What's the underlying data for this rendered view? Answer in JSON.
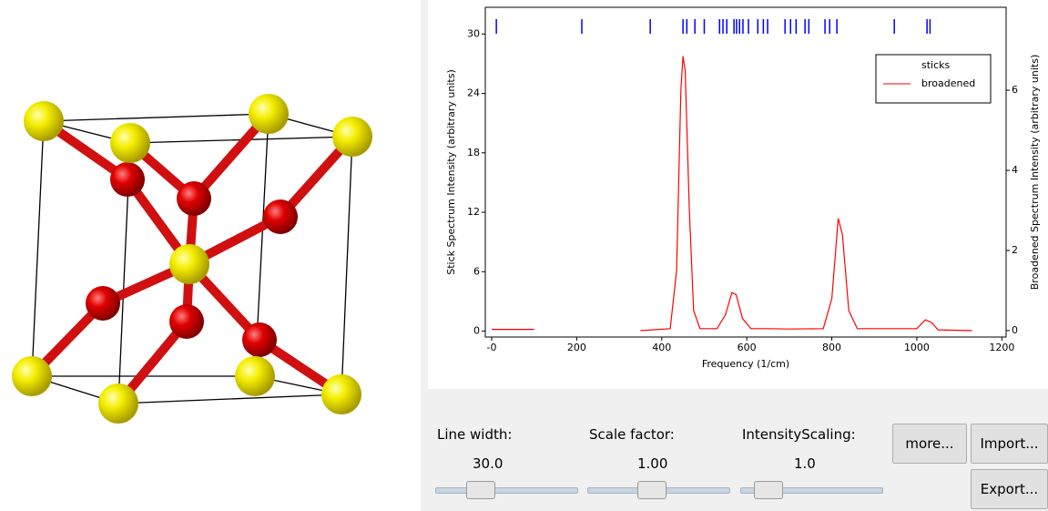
{
  "chart_data": {
    "type": "line",
    "xlabel": "Frequency (1/cm)",
    "ylabel": "Stick Spectrum Intensity (arbitrary units)",
    "y2label": "Broadened Spectrum Intensity (arbitrary units)",
    "xlim": [
      -15,
      1210
    ],
    "xticks": [
      {
        "value": 0,
        "label": "-0"
      },
      200,
      400,
      600,
      800,
      1000,
      1200
    ],
    "ylim": [
      -0.6,
      32.7
    ],
    "yticks": [
      0,
      6,
      12,
      18,
      24,
      30
    ],
    "y2lim": [
      -0.16,
      8.07
    ],
    "y2ticks": [
      0,
      2,
      4,
      6
    ],
    "legend": "upper right",
    "series": [
      {
        "name": "sticks",
        "color": "#0000ff",
        "style": "sticks",
        "x": [
          11,
          212,
          373,
          450,
          459,
          478,
          500,
          536,
          544,
          553,
          570,
          576,
          583,
          591,
          604,
          626,
          639,
          649,
          690,
          703,
          716,
          737,
          746,
          784,
          795,
          812,
          947,
          1024,
          1031
        ],
        "values": [
          31.5,
          31.5,
          31.5,
          31.5,
          31.5,
          31.5,
          31.5,
          31.5,
          31.5,
          31.5,
          31.5,
          31.5,
          31.5,
          31.5,
          31.5,
          31.5,
          31.5,
          31.5,
          31.5,
          31.5,
          31.5,
          31.5,
          31.5,
          31.5,
          31.5,
          31.5,
          31.5,
          31.5,
          31.5
        ]
      },
      {
        "name": "broadened",
        "color": "#ff0000",
        "axis": "y2",
        "x": [
          0,
          100,
          225,
          350,
          420,
          435,
          445,
          450,
          455,
          465,
          475,
          490,
          530,
          550,
          565,
          575,
          590,
          610,
          650,
          700,
          780,
          800,
          815,
          825,
          840,
          860,
          1000,
          1020,
          1035,
          1050,
          1130
        ],
        "values": [
          0.03,
          0.03,
          null,
          0,
          0.05,
          1.5,
          6,
          6.85,
          6.5,
          3,
          0.5,
          0.05,
          0.05,
          0.4,
          0.95,
          0.9,
          0.3,
          0.05,
          0.05,
          0.04,
          0.05,
          0.8,
          2.8,
          2.4,
          0.5,
          0.05,
          0.05,
          0.27,
          0.2,
          0.02,
          0
        ]
      }
    ]
  },
  "controls": {
    "sliders": [
      {
        "label": "Line width:",
        "value": "30.0"
      },
      {
        "label": "Scale factor:",
        "value": "1.00"
      },
      {
        "label": "IntensityScaling:",
        "value": "1.0"
      }
    ],
    "buttons": [
      "more...",
      "Import...",
      "Export..."
    ]
  }
}
